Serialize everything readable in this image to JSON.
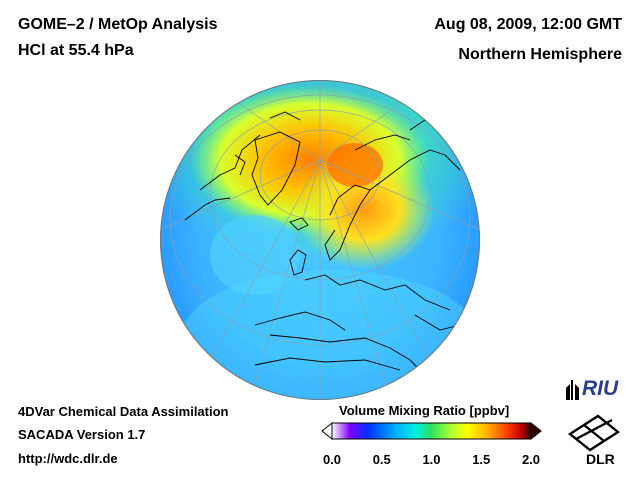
{
  "header": {
    "title_line1": "GOME–2 / MetOp Analysis",
    "title_line2": "HCl at 55.4 hPa",
    "date": "Aug 08, 2009, 12:00 GMT",
    "region": "Northern Hemisphere"
  },
  "footer": {
    "line1": "4DVar Chemical Data Assimilation",
    "line2": "SACADA Version 1.7",
    "url": "http://wdc.dlr.de"
  },
  "colorbar": {
    "title": "Volume Mixing Ratio [ppbv]",
    "ticks": [
      "0.0",
      "0.5",
      "1.0",
      "1.5",
      "2.0"
    ],
    "min": 0.0,
    "max": 2.0,
    "colors": [
      "#ffffff",
      "#7f00ff",
      "#0030ff",
      "#00b0ff",
      "#00f0e0",
      "#30e060",
      "#b0ff30",
      "#ffff00",
      "#ffb000",
      "#ff4000",
      "#c00000",
      "#300000"
    ]
  },
  "logos": {
    "riu": "RIU",
    "dlr": "DLR"
  }
}
